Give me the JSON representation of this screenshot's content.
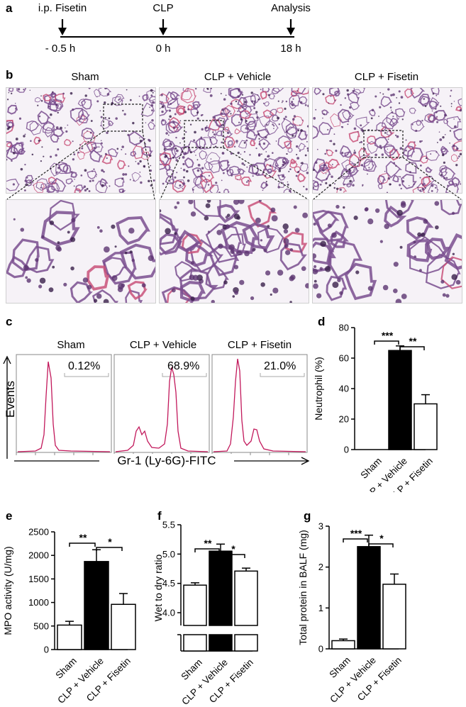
{
  "panels": {
    "a": {
      "label": "a",
      "events": [
        {
          "name": "i.p. Fisetin",
          "time": "- 0.5 h"
        },
        {
          "name": "CLP",
          "time": "0 h"
        },
        {
          "name": "Analysis",
          "time": "18 h"
        }
      ]
    },
    "b": {
      "label": "b",
      "groups": [
        "Sham",
        "CLP + Vehicle",
        "CLP + Fisetin"
      ]
    },
    "c": {
      "label": "c",
      "groups": [
        "Sham",
        "CLP + Vehicle",
        "CLP + Fisetin"
      ],
      "percentages": [
        "0.12%",
        "68.9%",
        "21.0%"
      ],
      "yaxis": "Events",
      "xaxis": "Gr-1 (Ly-6G)-FITC"
    }
  },
  "colors": {
    "histogram": "#c2185b",
    "tissue_purple": "#7a4f8f",
    "tissue_pink": "#c9527a",
    "bar_vehicle": "#000000"
  },
  "chart_data": [
    {
      "id": "d",
      "label": "d",
      "type": "bar",
      "categories": [
        "Sham",
        "CLP + Vehicle",
        "CLP + Fisetin"
      ],
      "values": [
        0,
        65,
        30
      ],
      "errors": [
        0,
        3,
        6
      ],
      "ylabel": "Neutrophil (%)",
      "ylim": [
        0,
        80
      ],
      "yticks": [
        0,
        20,
        40,
        60,
        80
      ],
      "significance": [
        {
          "from": 0,
          "to": 1,
          "text": "***"
        },
        {
          "from": 1,
          "to": 2,
          "text": "**"
        }
      ]
    },
    {
      "id": "e",
      "label": "e",
      "type": "bar",
      "categories": [
        "Sham",
        "CLP + Vehicle",
        "CLP + Fisetin"
      ],
      "values": [
        520,
        1870,
        960
      ],
      "errors": [
        80,
        250,
        230
      ],
      "ylabel": "MPO activity (U/mg)",
      "ylim": [
        0,
        2500
      ],
      "yticks": [
        0,
        500,
        1000,
        1500,
        2000,
        2500
      ],
      "significance": [
        {
          "from": 0,
          "to": 1,
          "text": "**"
        },
        {
          "from": 1,
          "to": 2,
          "text": "*"
        }
      ]
    },
    {
      "id": "f",
      "label": "f",
      "type": "bar",
      "categories": [
        "Sham",
        "CLP + Vehicle",
        "CLP + Fisetin"
      ],
      "values": [
        4.47,
        5.05,
        4.71
      ],
      "errors": [
        0.04,
        0.12,
        0.05
      ],
      "ylabel": "Wet to dry ratio",
      "ylim": [
        4.0,
        5.5
      ],
      "yticks": [
        4.0,
        4.5,
        5.0,
        5.5
      ],
      "broken_axis": true,
      "significance": [
        {
          "from": 0,
          "to": 1,
          "text": "**"
        },
        {
          "from": 1,
          "to": 2,
          "text": "*"
        }
      ]
    },
    {
      "id": "g",
      "label": "g",
      "type": "bar",
      "categories": [
        "Sham",
        "CLP + Vehicle",
        "CLP + Fisetin"
      ],
      "values": [
        0.2,
        2.5,
        1.58
      ],
      "errors": [
        0.04,
        0.28,
        0.25
      ],
      "ylabel": "Total protein in  BALF (mg)",
      "ylim": [
        0,
        3
      ],
      "yticks": [
        0,
        1,
        2,
        3
      ],
      "significance": [
        {
          "from": 0,
          "to": 1,
          "text": "***"
        },
        {
          "from": 1,
          "to": 2,
          "text": "*"
        }
      ]
    }
  ]
}
